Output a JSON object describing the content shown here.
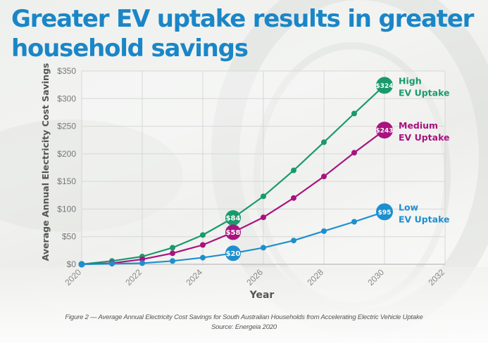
{
  "title": {
    "line1": "Greater EV uptake results in greater",
    "line2": "household savings"
  },
  "caption": {
    "figure": "Figure 2 — Average Annual Electricity Cost Savings for South Australian Households from Accelerating Electric Vehicle Uptake",
    "source": "Source: Energeia 2020"
  },
  "chart_data": {
    "type": "line",
    "title": "Greater EV uptake results in greater household savings",
    "xlabel": "Year",
    "ylabel": "Average Annual Electricity Cost Savings",
    "xlim": [
      2020,
      2032
    ],
    "ylim": [
      0,
      350
    ],
    "x_ticks": [
      2020,
      2022,
      2024,
      2026,
      2028,
      2030,
      2032
    ],
    "y_ticks": [
      0,
      50,
      100,
      150,
      200,
      250,
      300,
      350
    ],
    "y_tick_labels": [
      "$0",
      "$50",
      "$100",
      "$150",
      "$200",
      "$250",
      "$300",
      "$350"
    ],
    "grid": true,
    "x": [
      2020,
      2021,
      2022,
      2023,
      2024,
      2025,
      2026,
      2027,
      2028,
      2029,
      2030
    ],
    "series": [
      {
        "name": "High EV Uptake",
        "label_lines": [
          "High",
          "EV Uptake"
        ],
        "color": "#1a9a6c",
        "values": [
          0,
          6,
          14,
          30,
          53,
          84,
          123,
          170,
          221,
          273,
          324
        ],
        "highlighted": [
          {
            "x": 2025,
            "label": "$84"
          },
          {
            "x": 2030,
            "label": "$324"
          }
        ]
      },
      {
        "name": "Medium EV Uptake",
        "label_lines": [
          "Medium",
          "EV Uptake"
        ],
        "color": "#a8137f",
        "values": [
          0,
          2,
          9,
          20,
          35,
          58,
          85,
          120,
          159,
          202,
          243
        ],
        "highlighted": [
          {
            "x": 2025,
            "label": "$58"
          },
          {
            "x": 2030,
            "label": "$243"
          }
        ]
      },
      {
        "name": "Low EV Uptake",
        "label_lines": [
          "Low",
          "EV Uptake"
        ],
        "color": "#1d8fcf",
        "values": [
          0,
          1,
          2,
          6,
          12,
          20,
          30,
          43,
          60,
          77,
          95
        ],
        "highlighted": [
          {
            "x": 2025,
            "label": "$20"
          },
          {
            "x": 2030,
            "label": "$95"
          }
        ]
      }
    ],
    "legend_placement": "right-inline"
  }
}
